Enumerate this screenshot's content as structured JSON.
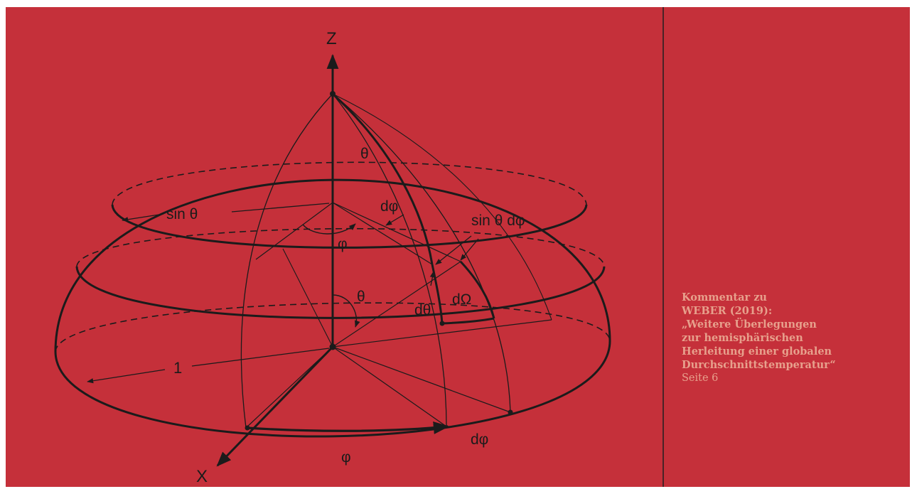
{
  "colors": {
    "background": "#c5303a",
    "ink": "#1b1b1b",
    "caption_text": "#e7a08c",
    "divider": "#4a2226",
    "page_margin": "#ffffff"
  },
  "diagram": {
    "labels": {
      "z_axis": "Z",
      "x_axis": "X",
      "theta_top": "θ",
      "dphi_upper": "dφ",
      "sin_theta": "sin θ",
      "sin_theta_dphi": "sin θ dφ",
      "phi_upper": "φ",
      "theta_inner": "θ",
      "dtheta": "dθ",
      "domega": "dΩ",
      "radius_one": "1",
      "phi_base": "φ",
      "dphi_base": "dφ"
    }
  },
  "caption": {
    "lines": [
      "Kommentar zu",
      "WEBER (2019):",
      "„Weitere Überlegungen",
      "zur hemisphärischen",
      "Herleitung einer globalen",
      "Durchschnittstemperatur“"
    ],
    "page": "Seite 6"
  }
}
